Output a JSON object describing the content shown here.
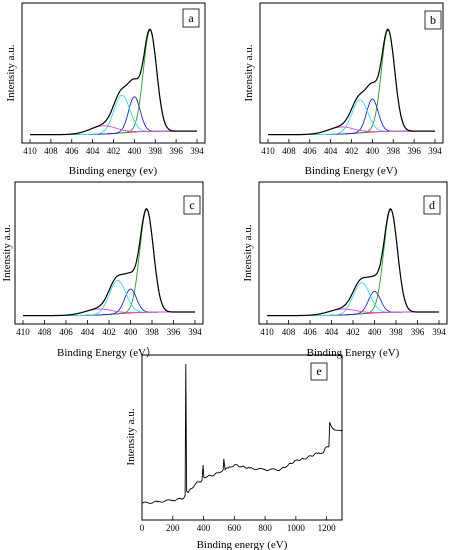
{
  "figure": {
    "panels": [
      {
        "id": "a",
        "panel_label": "a",
        "xlabel": "Binding energy (ev)",
        "ylabel": "Intensity a.u."
      },
      {
        "id": "b",
        "panel_label": "b",
        "xlabel": "Binding Energy (eV)",
        "ylabel": "Intensity a.u."
      },
      {
        "id": "c",
        "panel_label": "c",
        "xlabel": "Binding Energy (eV）",
        "ylabel": "Intensity a.u."
      },
      {
        "id": "d",
        "panel_label": "d",
        "xlabel": "Binding Energy (eV)",
        "ylabel": "Intensity a.u."
      },
      {
        "id": "e",
        "panel_label": "e",
        "xlabel": "Binding energy (eV)",
        "ylabel": "Intensity a.u."
      }
    ]
  },
  "colors": {
    "envelope": "#000000",
    "peak_398": "#1e9e1e",
    "peak_400": "#2222cc",
    "peak_401": "#33dddd",
    "peak_403": "#dd44dd",
    "background": "#dd3333",
    "frame": "#000000"
  },
  "chart_data": [
    {
      "panel": "a",
      "type": "line",
      "x_ticks": [
        410,
        408,
        406,
        404,
        402,
        400,
        398,
        396,
        394
      ],
      "xlim": [
        410,
        394
      ],
      "x_reversed": true,
      "y_ticks": false,
      "peaks": [
        {
          "component": "peak_398",
          "center": 398.5,
          "height": 0.86,
          "fwhm": 1.5
        },
        {
          "component": "peak_400",
          "center": 400.0,
          "height": 0.3,
          "fwhm": 1.3
        },
        {
          "component": "peak_401",
          "center": 401.2,
          "height": 0.32,
          "fwhm": 1.8
        },
        {
          "component": "peak_403",
          "center": 403.0,
          "height": 0.07,
          "fwhm": 3.0
        }
      ],
      "background": [
        0.02,
        0.05
      ]
    },
    {
      "panel": "b",
      "type": "line",
      "x_ticks": [
        410,
        408,
        406,
        404,
        402,
        400,
        398,
        396,
        394
      ],
      "xlim": [
        410,
        394
      ],
      "x_reversed": true,
      "y_ticks": false,
      "peaks": [
        {
          "component": "peak_398",
          "center": 398.5,
          "height": 0.86,
          "fwhm": 1.5
        },
        {
          "component": "peak_400",
          "center": 400.0,
          "height": 0.28,
          "fwhm": 1.3
        },
        {
          "component": "peak_401",
          "center": 401.2,
          "height": 0.28,
          "fwhm": 1.8
        },
        {
          "component": "peak_403",
          "center": 403.0,
          "height": 0.06,
          "fwhm": 3.0
        }
      ],
      "background": [
        0.02,
        0.05
      ]
    },
    {
      "panel": "c",
      "type": "line",
      "x_ticks": [
        410,
        408,
        406,
        404,
        402,
        400,
        398,
        396,
        394
      ],
      "xlim": [
        410,
        394
      ],
      "x_reversed": true,
      "y_ticks": false,
      "peaks": [
        {
          "component": "peak_398",
          "center": 398.5,
          "height": 0.86,
          "fwhm": 1.5
        },
        {
          "component": "peak_400",
          "center": 400.0,
          "height": 0.2,
          "fwhm": 1.3
        },
        {
          "component": "peak_401",
          "center": 401.2,
          "height": 0.28,
          "fwhm": 1.8
        },
        {
          "component": "peak_403",
          "center": 403.0,
          "height": 0.05,
          "fwhm": 3.0
        }
      ],
      "background": [
        0.02,
        0.05
      ]
    },
    {
      "panel": "d",
      "type": "line",
      "x_ticks": [
        410,
        408,
        406,
        404,
        402,
        400,
        398,
        396,
        394
      ],
      "xlim": [
        410,
        394
      ],
      "x_reversed": true,
      "y_ticks": false,
      "peaks": [
        {
          "component": "peak_398",
          "center": 398.5,
          "height": 0.86,
          "fwhm": 1.5
        },
        {
          "component": "peak_400",
          "center": 400.0,
          "height": 0.18,
          "fwhm": 1.3
        },
        {
          "component": "peak_401",
          "center": 401.2,
          "height": 0.26,
          "fwhm": 1.8
        },
        {
          "component": "peak_403",
          "center": 403.0,
          "height": 0.05,
          "fwhm": 3.0
        }
      ],
      "background": [
        0.02,
        0.05
      ]
    },
    {
      "panel": "e",
      "type": "line",
      "x_ticks": [
        0,
        200,
        400,
        600,
        800,
        1000,
        1200
      ],
      "xlim": [
        0,
        1300
      ],
      "x_reversed": false,
      "y_ticks": false,
      "survey": [
        [
          0,
          0.07
        ],
        [
          100,
          0.08
        ],
        [
          200,
          0.09
        ],
        [
          270,
          0.1
        ],
        [
          280,
          0.12
        ],
        [
          285,
          0.98
        ],
        [
          290,
          0.15
        ],
        [
          300,
          0.14
        ],
        [
          350,
          0.2
        ],
        [
          390,
          0.22
        ],
        [
          397,
          0.32
        ],
        [
          402,
          0.24
        ],
        [
          450,
          0.25
        ],
        [
          500,
          0.27
        ],
        [
          528,
          0.29
        ],
        [
          532,
          0.36
        ],
        [
          540,
          0.29
        ],
        [
          560,
          0.3
        ],
        [
          600,
          0.32
        ],
        [
          650,
          0.31
        ],
        [
          700,
          0.3
        ],
        [
          800,
          0.29
        ],
        [
          900,
          0.29
        ],
        [
          950,
          0.32
        ],
        [
          1000,
          0.35
        ],
        [
          1050,
          0.36
        ],
        [
          1100,
          0.38
        ],
        [
          1150,
          0.4
        ],
        [
          1180,
          0.4
        ],
        [
          1190,
          0.43
        ],
        [
          1200,
          0.44
        ],
        [
          1215,
          0.44
        ],
        [
          1220,
          0.6
        ],
        [
          1240,
          0.56
        ],
        [
          1300,
          0.54
        ]
      ]
    }
  ]
}
